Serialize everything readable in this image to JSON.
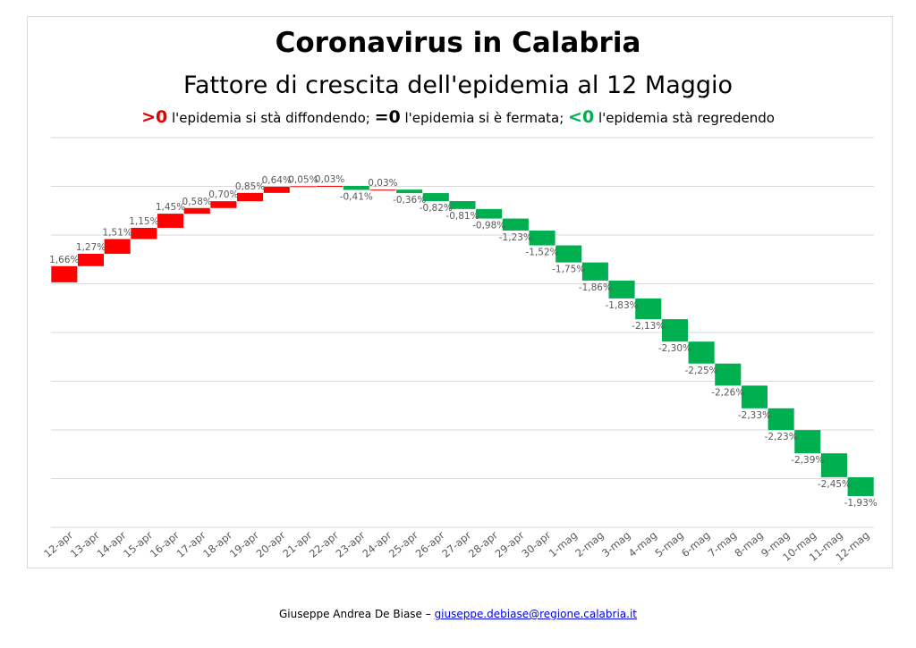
{
  "title": "Coronavirus in Calabria",
  "subtitle": "Fattore di crescita dell'epidemia al 12 Maggio",
  "legend": {
    "pos_symbol": ">0",
    "pos_text": " l'epidemia si stà diffondendo; ",
    "zero_symbol": "=0",
    "zero_text": " l'epidemia si è fermata; ",
    "neg_symbol": "<0",
    "neg_text": " l'epidemia stà regredendo"
  },
  "footer": {
    "author": "Giuseppe Andrea De Biase – ",
    "email": "giuseppe.debiase@regione.calabria.it"
  },
  "colors": {
    "positive": "#ff0000",
    "negative": "#00b050",
    "grid": "#d9d9d9",
    "label": "#595959"
  },
  "chart_data": {
    "type": "bar",
    "subtype": "waterfall",
    "categories": [
      "12-apr",
      "13-apr",
      "14-apr",
      "15-apr",
      "16-apr",
      "17-apr",
      "18-apr",
      "19-apr",
      "20-apr",
      "21-apr",
      "22-apr",
      "23-apr",
      "24-apr",
      "25-apr",
      "26-apr",
      "27-apr",
      "28-apr",
      "29-apr",
      "30-apr",
      "1-mag",
      "2-mag",
      "3-mag",
      "4-mag",
      "5-mag",
      "6-mag",
      "7-mag",
      "8-mag",
      "9-mag",
      "10-mag",
      "11-mag",
      "12-mag"
    ],
    "values": [
      1.66,
      1.27,
      1.51,
      1.15,
      1.45,
      0.58,
      0.7,
      0.85,
      0.64,
      0.05,
      0.03,
      -0.41,
      0.03,
      -0.36,
      -0.82,
      -0.81,
      -0.98,
      -1.23,
      -1.52,
      -1.75,
      -1.86,
      -1.83,
      -2.13,
      -2.3,
      -2.25,
      -2.26,
      -2.33,
      -2.23,
      -2.39,
      -2.45,
      -1.93
    ],
    "labels": [
      "1,66%",
      "1,27%",
      "1,51%",
      "1,15%",
      "1,45%",
      "0,58%",
      "0,70%",
      "0,85%",
      "0,64%",
      "0,05%",
      "0,03%",
      "-0,41%",
      "0,03%",
      "-0,36%",
      "-0,82%",
      "-0,81%",
      "-0,98%",
      "-1,23%",
      "-1,52%",
      "-1,75%",
      "-1,86%",
      "-1,83%",
      "-2,13%",
      "-2,30%",
      "-2,25%",
      "-2,26%",
      "-2,33%",
      "-2,23%",
      "-2,39%",
      "-2,45%",
      "-1,93%"
    ],
    "grid": true,
    "xlabel": "",
    "ylabel": ""
  }
}
